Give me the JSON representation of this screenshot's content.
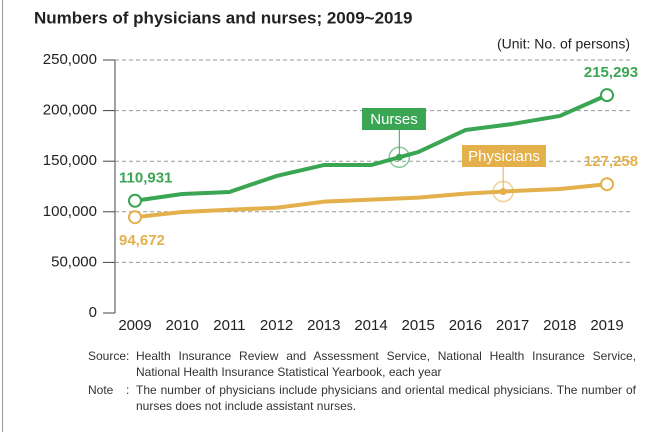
{
  "chart_data": {
    "type": "line",
    "title": "Numbers of physicians and nurses; 2009~2019",
    "unit": "(Unit: No. of persons)",
    "categories": [
      "2009",
      "2010",
      "2011",
      "2012",
      "2013",
      "2014",
      "2015",
      "2016",
      "2017",
      "2018",
      "2019"
    ],
    "series": [
      {
        "name": "Nurses",
        "color": "#3aa552",
        "values": [
          110931,
          117600,
          119600,
          135400,
          146200,
          146200,
          159000,
          180800,
          186800,
          194700,
          215293
        ],
        "value_labels": [
          "110,931",
          null,
          null,
          null,
          null,
          null,
          null,
          null,
          null,
          null,
          "215,293"
        ]
      },
      {
        "name": "Physicians",
        "color": "#e3b04b",
        "values": [
          94672,
          99800,
          102000,
          104000,
          110000,
          112000,
          114000,
          118000,
          120500,
          122500,
          127258
        ],
        "value_labels": [
          "94,672",
          null,
          null,
          null,
          null,
          null,
          null,
          null,
          null,
          null,
          "127,258"
        ]
      }
    ],
    "ylim": [
      0,
      250000
    ],
    "yticks": [
      0,
      {
        "value": 50000,
        "label": "50,000"
      },
      {
        "value": 100000,
        "label": "100,000"
      },
      {
        "value": 150000,
        "label": "150,000"
      },
      {
        "value": 200000,
        "label": "200,000"
      },
      {
        "value": 250000,
        "label": "250,000"
      }
    ],
    "grid": true
  },
  "footnotes": [
    {
      "label": "Source",
      "separator": ":",
      "text": "Health Insurance Review and Assessment Service, National Health Insurance Service, National Health Insurance Statistical Yearbook, each year"
    },
    {
      "label": "Note",
      "separator": ":",
      "text": "The number of physicians include physicians and oriental medical physicians. The number of nurses does not include assistant nurses."
    }
  ]
}
